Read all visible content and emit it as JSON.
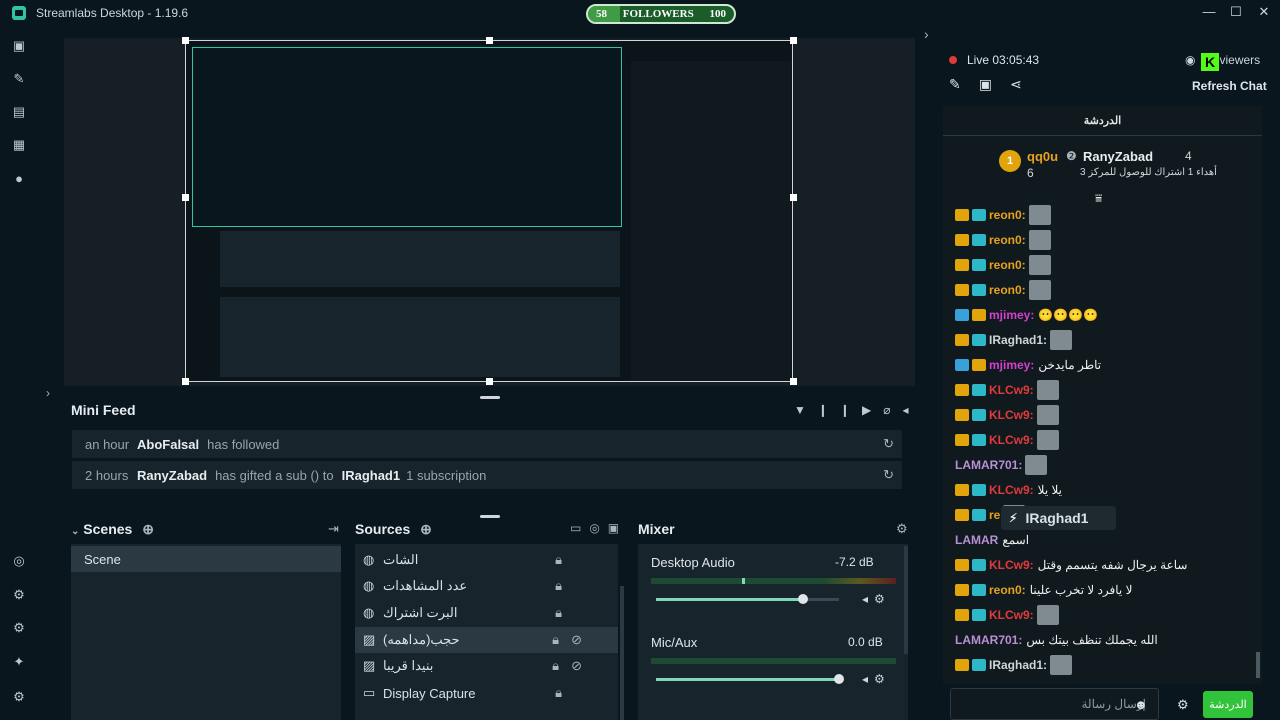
{
  "app": {
    "title": "Streamlabs Desktop - 1.19.6"
  },
  "goal": {
    "current": "58",
    "label": "FOLLOWERS",
    "target": "100",
    "progress": 0.58
  },
  "window_controls": {
    "min": "—",
    "max": "☐",
    "close": "✕"
  },
  "mini_feed": {
    "title": "Mini Feed",
    "rows": [
      {
        "time": "an hour",
        "user": "AboFalsal",
        "action": "has followed",
        "target": "",
        "detail": ""
      },
      {
        "time": "2 hours",
        "user": "RanyZabad",
        "action": "has gifted a sub () to",
        "target": "IRaghad1",
        "detail": "1 subscription"
      }
    ]
  },
  "scenes": {
    "title": "Scenes",
    "items": [
      "Scene"
    ]
  },
  "sources": {
    "title": "Sources",
    "items": [
      "الشات",
      "عدد المشاهدات",
      "البرت اشتراك",
      "حجب(مداهمه)",
      "بنيدا قريبا",
      "Display Capture"
    ]
  },
  "mixer": {
    "title": "Mixer",
    "tracks": [
      {
        "name": "Desktop Audio",
        "db": "-7.2 dB",
        "level": 0.6
      },
      {
        "name": "Mic/Aux",
        "db": "0.0 dB",
        "level": 1.0
      }
    ]
  },
  "stream": {
    "status": "Live",
    "time": "03:05:43",
    "viewers_suffix": "viewers",
    "refresh": "Refresh Chat"
  },
  "chat": {
    "header": "الدردشة",
    "leader1_name": "qq0u",
    "leader1_count": "6",
    "leader2_name": "RanyZabad",
    "leader2_count": "4",
    "leader2_sub": "أهداء 1 اشتراك للوصول للمركز 3",
    "messages": [
      {
        "user": "reon0:",
        "color": "#e6a21a",
        "text": ""
      },
      {
        "user": "reon0:",
        "color": "#e6a21a",
        "text": ""
      },
      {
        "user": "reon0:",
        "color": "#e6a21a",
        "text": ""
      },
      {
        "user": "reon0:",
        "color": "#e6a21a",
        "text": ""
      },
      {
        "user": "mjimey:",
        "color": "#d53fd0",
        "text": "😶😶😶😶"
      },
      {
        "user": "IRaghad1:",
        "color": "#cfd6da",
        "text": ""
      },
      {
        "user": "mjimey:",
        "color": "#d53fd0",
        "text": "تاطر مايدخن"
      },
      {
        "user": "KLCw9:",
        "color": "#e03a3a",
        "text": ""
      },
      {
        "user": "KLCw9:",
        "color": "#e03a3a",
        "text": ""
      },
      {
        "user": "KLCw9:",
        "color": "#e03a3a",
        "text": ""
      },
      {
        "user": "LAMAR701:",
        "color": "#b98fd6",
        "text": ""
      },
      {
        "user": "KLCw9:",
        "color": "#e03a3a",
        "text": "يلا يلا"
      },
      {
        "user": "re",
        "color": "#e6a21a",
        "text": ""
      },
      {
        "user": "LAMAR",
        "color": "#b98fd6",
        "text": "اسمع"
      },
      {
        "user": "KLCw9:",
        "color": "#e03a3a",
        "text": "ساعة يرجال شفه يتسمم وقتل"
      },
      {
        "user": "reon0:",
        "color": "#e6a21a",
        "text": "لا يافرد لا تخرب علينا"
      },
      {
        "user": "KLCw9:",
        "color": "#e03a3a",
        "text": ""
      },
      {
        "user": "LAMAR701:",
        "color": "#b98fd6",
        "text": "الله يجملك تنظف بيتك بس"
      },
      {
        "user": "IRaghad1:",
        "color": "#cfd6da",
        "text": ""
      }
    ],
    "tooltip": "IRaghad1",
    "input_placeholder": "إرسال رسالة",
    "send_label": "الدردشة"
  },
  "colors": {
    "accent": "#31c3a2",
    "chat_button": "#31c33a",
    "live": "#e03a3a"
  }
}
